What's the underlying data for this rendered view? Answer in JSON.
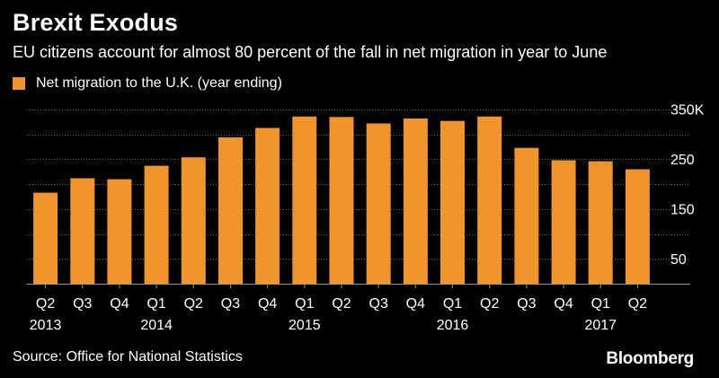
{
  "header": {
    "title": "Brexit Exodus",
    "subtitle": "EU citizens account for almost 80 percent of the fall in net migration in year to June"
  },
  "legend": {
    "label": "Net migration to the U.K. (year ending)"
  },
  "footer": {
    "source": "Source: Office for National Statistics",
    "brand": "Bloomberg"
  },
  "colors": {
    "background": "#000000",
    "bar": "#f0952a",
    "text": "#ffffff",
    "grid": "#707070"
  },
  "chart_data": {
    "type": "bar",
    "title": "Brexit Exodus",
    "xlabel": "",
    "ylabel": "",
    "ylim": [
      0,
      350
    ],
    "yticks": [
      50,
      150,
      250,
      350
    ],
    "ytick_labels": [
      "50",
      "150",
      "250",
      "350K"
    ],
    "grid": true,
    "legend": "top-left",
    "categories": [
      "Q2 2013",
      "Q3 2013",
      "Q4 2013",
      "Q1 2014",
      "Q2 2014",
      "Q3 2014",
      "Q4 2014",
      "Q1 2015",
      "Q2 2015",
      "Q3 2015",
      "Q4 2015",
      "Q1 2016",
      "Q2 2016",
      "Q3 2016",
      "Q4 2016",
      "Q1 2017",
      "Q2 2017"
    ],
    "quarter_labels": [
      "Q2",
      "Q3",
      "Q4",
      "Q1",
      "Q2",
      "Q3",
      "Q4",
      "Q1",
      "Q2",
      "Q3",
      "Q4",
      "Q1",
      "Q2",
      "Q3",
      "Q4",
      "Q1",
      "Q2"
    ],
    "year_labels": [
      {
        "index": 0,
        "label": "2013"
      },
      {
        "index": 3,
        "label": "2014"
      },
      {
        "index": 7,
        "label": "2015"
      },
      {
        "index": 11,
        "label": "2016"
      },
      {
        "index": 15,
        "label": "2017"
      }
    ],
    "series": [
      {
        "name": "Net migration to the U.K. (year ending)",
        "values": [
          183,
          212,
          210,
          237,
          254,
          294,
          313,
          336,
          335,
          322,
          332,
          327,
          336,
          273,
          248,
          246,
          230
        ]
      }
    ]
  }
}
